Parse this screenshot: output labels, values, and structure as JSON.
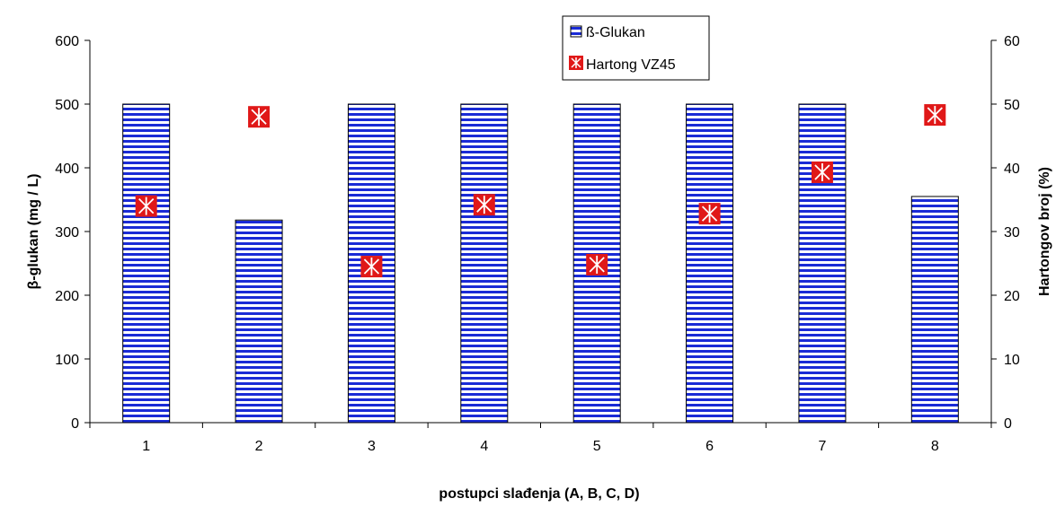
{
  "chart_data": {
    "type": "bar",
    "categories": [
      "1",
      "2",
      "3",
      "4",
      "5",
      "6",
      "7",
      "8"
    ],
    "series": [
      {
        "name": "ß-Glukan",
        "type": "bar",
        "axis": "left",
        "values": [
          500,
          318,
          500,
          500,
          500,
          500,
          500,
          355
        ]
      },
      {
        "name": "Hartong VZ45",
        "type": "scatter",
        "axis": "right",
        "values": [
          34,
          48,
          24.5,
          34.2,
          24.8,
          32.8,
          39.3,
          48.3
        ]
      }
    ],
    "xlabel": "postupci slađenja (A, B, C, D)",
    "ylabel": "β-glukan (mg / L)",
    "y2label": "Hartongov broj (%)",
    "ylim": [
      0,
      600
    ],
    "y2lim": [
      0,
      60
    ],
    "yticks": [
      "0",
      "100",
      "200",
      "300",
      "400",
      "500",
      "600"
    ],
    "y2ticks": [
      "0",
      "10",
      "20",
      "30",
      "40",
      "50",
      "60"
    ],
    "grid": false,
    "legend_position": "top-center",
    "colors": {
      "bar_stripe": "#1a2bd6",
      "bar_fill": "#ffffff",
      "marker_fill": "#e01818",
      "marker_symbol": "#ffffff"
    }
  }
}
